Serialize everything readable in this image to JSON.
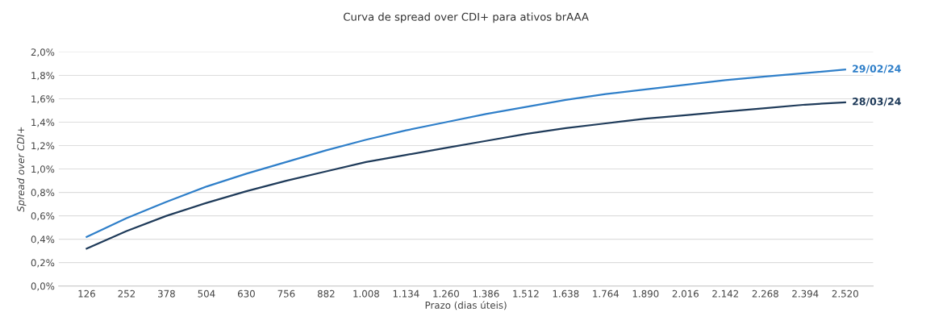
{
  "chart_data": {
    "type": "line",
    "title": "Curva de spread over CDI+ para ativos brAAA",
    "xlabel": "Prazo (dias úteis)",
    "ylabel": "Spread over CDI+",
    "categories": [
      "126",
      "252",
      "378",
      "504",
      "630",
      "756",
      "882",
      "1.008",
      "1.134",
      "1.260",
      "1.386",
      "1.512",
      "1.638",
      "1.764",
      "1.890",
      "2.016",
      "2.142",
      "2.268",
      "2.394",
      "2.520"
    ],
    "series": [
      {
        "name": "29/02/24",
        "color": "#2f7fc9",
        "values": [
          0.42,
          0.58,
          0.72,
          0.85,
          0.96,
          1.06,
          1.16,
          1.25,
          1.33,
          1.4,
          1.47,
          1.53,
          1.59,
          1.64,
          1.68,
          1.72,
          1.76,
          1.79,
          1.82,
          1.85
        ]
      },
      {
        "name": "28/03/24",
        "color": "#1f3b5a",
        "values": [
          0.32,
          0.47,
          0.6,
          0.71,
          0.81,
          0.9,
          0.98,
          1.06,
          1.12,
          1.18,
          1.24,
          1.3,
          1.35,
          1.39,
          1.43,
          1.46,
          1.49,
          1.52,
          1.55,
          1.57
        ]
      }
    ],
    "ylim": [
      0,
      2.0
    ],
    "yticks": [
      {
        "value": 0,
        "label": "0,0%"
      },
      {
        "value": 0.2,
        "label": "0,2%"
      },
      {
        "value": 0.4,
        "label": "0,4%"
      },
      {
        "value": 0.6,
        "label": "0,6%"
      },
      {
        "value": 0.8,
        "label": "0,8%"
      },
      {
        "value": 1.0,
        "label": "1,0%"
      },
      {
        "value": 1.2,
        "label": "1,2%"
      },
      {
        "value": 1.4,
        "label": "1,4%"
      },
      {
        "value": 1.6,
        "label": "1,6%"
      },
      {
        "value": 1.8,
        "label": "1,8%"
      },
      {
        "value": 2.0,
        "label": "2,0%"
      }
    ],
    "grid": "y",
    "marker": "none",
    "line_style": "solid"
  }
}
